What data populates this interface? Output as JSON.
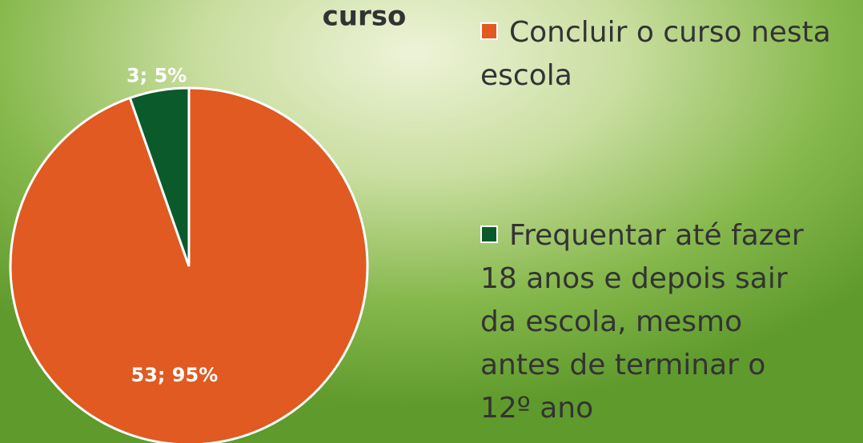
{
  "chart_data": {
    "type": "pie",
    "title": "curso",
    "categories": [
      "Concluir o curso nesta escola",
      "Frequentar até fazer 18 anos e depois sair da escola, mesmo antes de terminar o 12º ano"
    ],
    "values": [
      53,
      3
    ],
    "value_labels": [
      "53; 95%",
      "3; 5%"
    ],
    "colors": [
      "#e05a22",
      "#0b5a2c"
    ],
    "legend": "right"
  }
}
